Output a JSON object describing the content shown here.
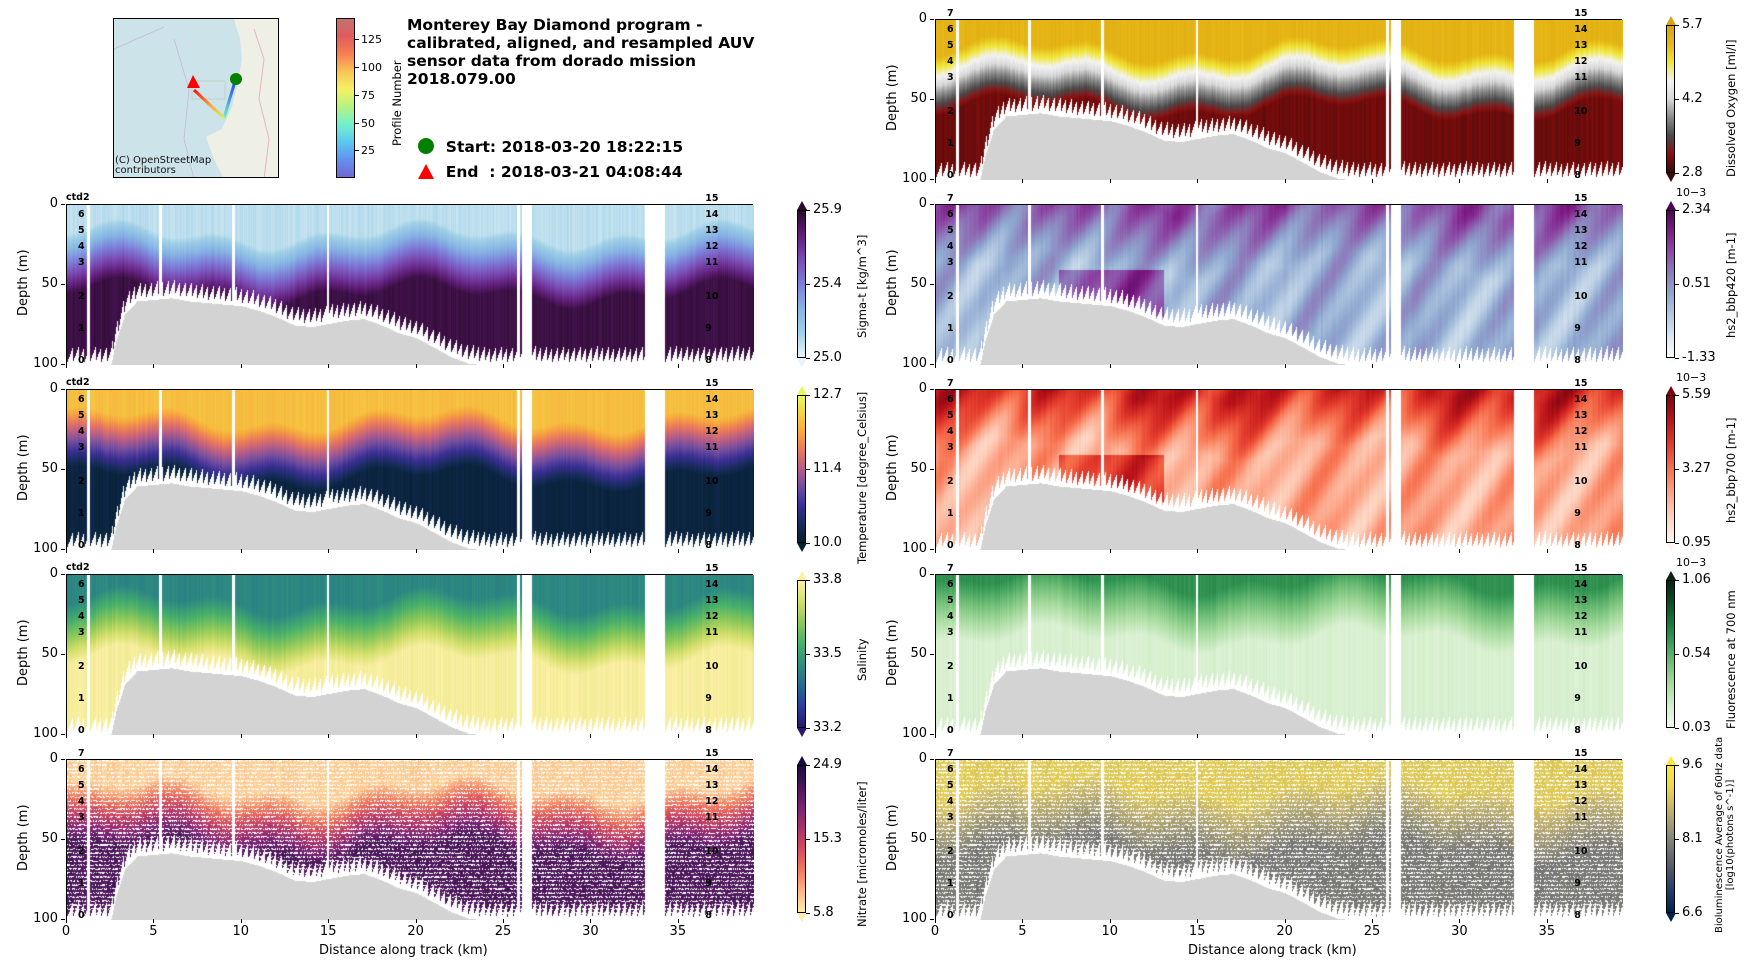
{
  "header": {
    "title_lines": [
      "Monterey Bay Diamond program -",
      "calibrated, aligned, and resampled AUV",
      "sensor data from dorado mission",
      "2018.079.00"
    ],
    "start_label": "Start: 2018-03-20 18:22:15",
    "end_label": "End  : 2018-03-21 04:08:44",
    "start_color": "#008000",
    "end_color": "#ff0000"
  },
  "map": {
    "credit_line1": "(C) OpenStreetMap",
    "credit_line2": "contributors",
    "water_color": "#cde3ea",
    "land_color": "#eef0e6"
  },
  "profile_colorbar": {
    "label": "Profile Number",
    "ticks": [
      "25",
      "50",
      "75",
      "100",
      "125"
    ],
    "tick_values": [
      25,
      50,
      75,
      100,
      125
    ],
    "range": [
      1,
      145
    ]
  },
  "axes_common": {
    "ylabel": "Depth (m)",
    "xlabel": "Distance along track (km)",
    "yticks": [
      "0",
      "50",
      "100"
    ],
    "ytick_values": [
      0,
      50,
      100
    ],
    "xticks": [
      "0",
      "5",
      "10",
      "15",
      "20",
      "25",
      "30",
      "35"
    ],
    "xtick_values": [
      0,
      5,
      10,
      15,
      20,
      25,
      30,
      35
    ],
    "xlim": [
      0,
      39.3
    ],
    "ylim": [
      100,
      0
    ],
    "left_profile_labels": [
      "7",
      "6",
      "5",
      "4",
      "3",
      "2",
      "1",
      "0"
    ],
    "left_profile_depths": [
      -3,
      7,
      17,
      27,
      37,
      58,
      78,
      98
    ],
    "right_profile_labels": [
      "15",
      "14",
      "13",
      "12",
      "11",
      "10",
      "9",
      "8"
    ],
    "right_profile_depths": [
      -3,
      7,
      17,
      27,
      37,
      58,
      78,
      98
    ],
    "ctd_label": "ctd2"
  },
  "chart_data": [
    {
      "type": "heatmap",
      "id": "sigma_t",
      "column": "left",
      "row": 1,
      "cbar_label": "Sigma-t [kg/m^3]",
      "cbar_ticks": [
        "25.9",
        "25.4",
        "25.0"
      ],
      "exponent": "",
      "vmin": 25.0,
      "vmax": 25.9,
      "colormap": [
        "#e8f4f9",
        "#9fd0e6",
        "#86b4e4",
        "#7d7fd9",
        "#7a4bb3",
        "#611f7a",
        "#2c0a2d"
      ],
      "thermocline_depth": 30,
      "surface_value": 0.1,
      "deep_value": 0.95,
      "show_ctd": true,
      "style": "smooth"
    },
    {
      "type": "heatmap",
      "id": "temperature",
      "column": "left",
      "row": 2,
      "cbar_label": "Temperature [degree_Celsius]",
      "cbar_ticks": [
        "12.7",
        "11.4",
        "10.0"
      ],
      "exponent": "",
      "vmin": 10.0,
      "vmax": 12.7,
      "colormap": [
        "#03202f",
        "#172c5a",
        "#3a2f94",
        "#704d9f",
        "#b45d89",
        "#e8765f",
        "#f7a83d",
        "#f4d043",
        "#e8fa5b"
      ],
      "thermocline_depth": 30,
      "surface_value": 0.82,
      "deep_value": 0.05,
      "show_ctd": true,
      "style": "smooth"
    },
    {
      "type": "heatmap",
      "id": "salinity",
      "column": "left",
      "row": 3,
      "cbar_label": "Salinity",
      "cbar_ticks": [
        "33.8",
        "33.5",
        "33.2"
      ],
      "exponent": "",
      "vmin": 33.2,
      "vmax": 33.8,
      "colormap": [
        "#29186b",
        "#2a3d99",
        "#246b8c",
        "#2f8e7f",
        "#48b06a",
        "#8cc85a",
        "#d3df6a",
        "#fdf0a6"
      ],
      "thermocline_depth": 28,
      "surface_value": 0.4,
      "deep_value": 0.98,
      "show_ctd": true,
      "style": "smooth"
    },
    {
      "type": "heatmap",
      "id": "nitrate",
      "column": "left",
      "row": 4,
      "cbar_label": "Nitrate [micromoles/liter]",
      "cbar_ticks": [
        "24.9",
        "15.3",
        "5.8"
      ],
      "exponent": "",
      "vmin": 5.8,
      "vmax": 24.9,
      "colormap": [
        "#fdedb0",
        "#fbb784",
        "#f07a5d",
        "#d44c5f",
        "#a8336a",
        "#782473",
        "#4a1659",
        "#1b0c3e"
      ],
      "thermocline_depth": 30,
      "surface_value": 0.08,
      "deep_value": 0.85,
      "show_ctd": false,
      "style": "streaks"
    },
    {
      "type": "heatmap",
      "id": "dissolved_oxygen",
      "column": "right",
      "row": 0,
      "cbar_label": "Dissolved Oxygen [ml/l]",
      "cbar_ticks": [
        "5.7",
        "4.2",
        "2.8"
      ],
      "exponent": "",
      "vmin": 2.8,
      "vmax": 5.7,
      "colormap": [
        "#3a0a0a",
        "#8b0e0e",
        "#4b4b4b",
        "#8a8a8a",
        "#d8d8d8",
        "#f3f3f3",
        "#f0e63a",
        "#e7b816",
        "#d9a514"
      ],
      "thermocline_depth": 30,
      "surface_value": 0.9,
      "deep_value": 0.08,
      "show_ctd": false,
      "style": "smooth"
    },
    {
      "type": "heatmap",
      "id": "bbp420",
      "column": "right",
      "row": 1,
      "cbar_label": "hs2_bbp420 [m-1]",
      "cbar_ticks": [
        "2.34",
        "0.51",
        "-1.33"
      ],
      "exponent": "10−3",
      "vmin": -1.33,
      "vmax": 2.34,
      "colormap": [
        "#fbfdfe",
        "#d9e6f1",
        "#b3c9e1",
        "#8fa8d0",
        "#8d7dbc",
        "#8c4ca6",
        "#7f1d87",
        "#4d0654"
      ],
      "thermocline_depth": 12,
      "surface_value": 0.72,
      "deep_value": 0.38,
      "show_ctd": false,
      "style": "patchy"
    },
    {
      "type": "heatmap",
      "id": "bbp700",
      "column": "right",
      "row": 2,
      "cbar_label": "hs2_bbp700 [m-1]",
      "cbar_ticks": [
        "5.59",
        "3.27",
        "0.95"
      ],
      "exponent": "10−3",
      "vmin": 0.95,
      "vmax": 5.59,
      "colormap": [
        "#fff5f0",
        "#fdd1bd",
        "#fca487",
        "#f7714e",
        "#e33a2c",
        "#bb1419",
        "#7a0510"
      ],
      "thermocline_depth": 12,
      "surface_value": 0.78,
      "deep_value": 0.32,
      "show_ctd": false,
      "style": "patchy"
    },
    {
      "type": "heatmap",
      "id": "fluorescence",
      "column": "right",
      "row": 3,
      "cbar_label": "Fluorescence at 700 nm",
      "cbar_ticks": [
        "1.06",
        "0.54",
        "0.03"
      ],
      "exponent": "10−3",
      "vmin": 0.03,
      "vmax": 1.06,
      "colormap": [
        "#f4fbf0",
        "#d4eecb",
        "#a9dca0",
        "#75c179",
        "#3c9e5a",
        "#18773d",
        "#0c4a26",
        "#0a2410"
      ],
      "thermocline_depth": 15,
      "surface_value": 0.62,
      "deep_value": 0.12,
      "show_ctd": false,
      "style": "smooth"
    },
    {
      "type": "heatmap",
      "id": "bioluminescence",
      "column": "right",
      "row": 4,
      "cbar_label_lines": [
        "Bioluminescence Average of 60Hz data",
        "[log10(photons s^-1)]"
      ],
      "cbar_ticks": [
        "9.6",
        "8.1",
        "6.6"
      ],
      "exponent": "",
      "vmin": 6.6,
      "vmax": 9.6,
      "colormap": [
        "#00224e",
        "#233b6e",
        "#4d5669",
        "#727374",
        "#9a9576",
        "#c5b56c",
        "#f0d849",
        "#fde737"
      ],
      "thermocline_depth": 30,
      "surface_value": 0.8,
      "deep_value": 0.45,
      "show_ctd": false,
      "style": "streaks"
    }
  ],
  "bathymetry": {
    "color": "#d3d3d3",
    "distance_km": [
      0,
      2.5,
      2.8,
      3.3,
      4.0,
      5.0,
      6.0,
      7.0,
      8.0,
      9.0,
      10.0,
      11.0,
      12.0,
      13.0,
      14.0,
      15.0,
      16.0,
      17.0,
      18.0,
      19.0,
      20.0,
      21.0,
      22.0,
      23.0,
      24.0,
      25.0,
      39.3
    ],
    "depth_m": [
      100,
      100,
      85,
      68,
      60,
      59,
      58,
      60,
      61,
      62,
      63,
      66,
      70,
      75,
      76,
      74,
      72,
      71,
      75,
      80,
      83,
      89,
      95,
      99,
      100,
      100,
      100
    ]
  },
  "profile_gaps_km": [
    1.2,
    5.3,
    9.5,
    14.9,
    25.8,
    33.1
  ],
  "big_gaps_km": [
    [
      26.0,
      26.6
    ],
    [
      33.2,
      34.2
    ]
  ]
}
